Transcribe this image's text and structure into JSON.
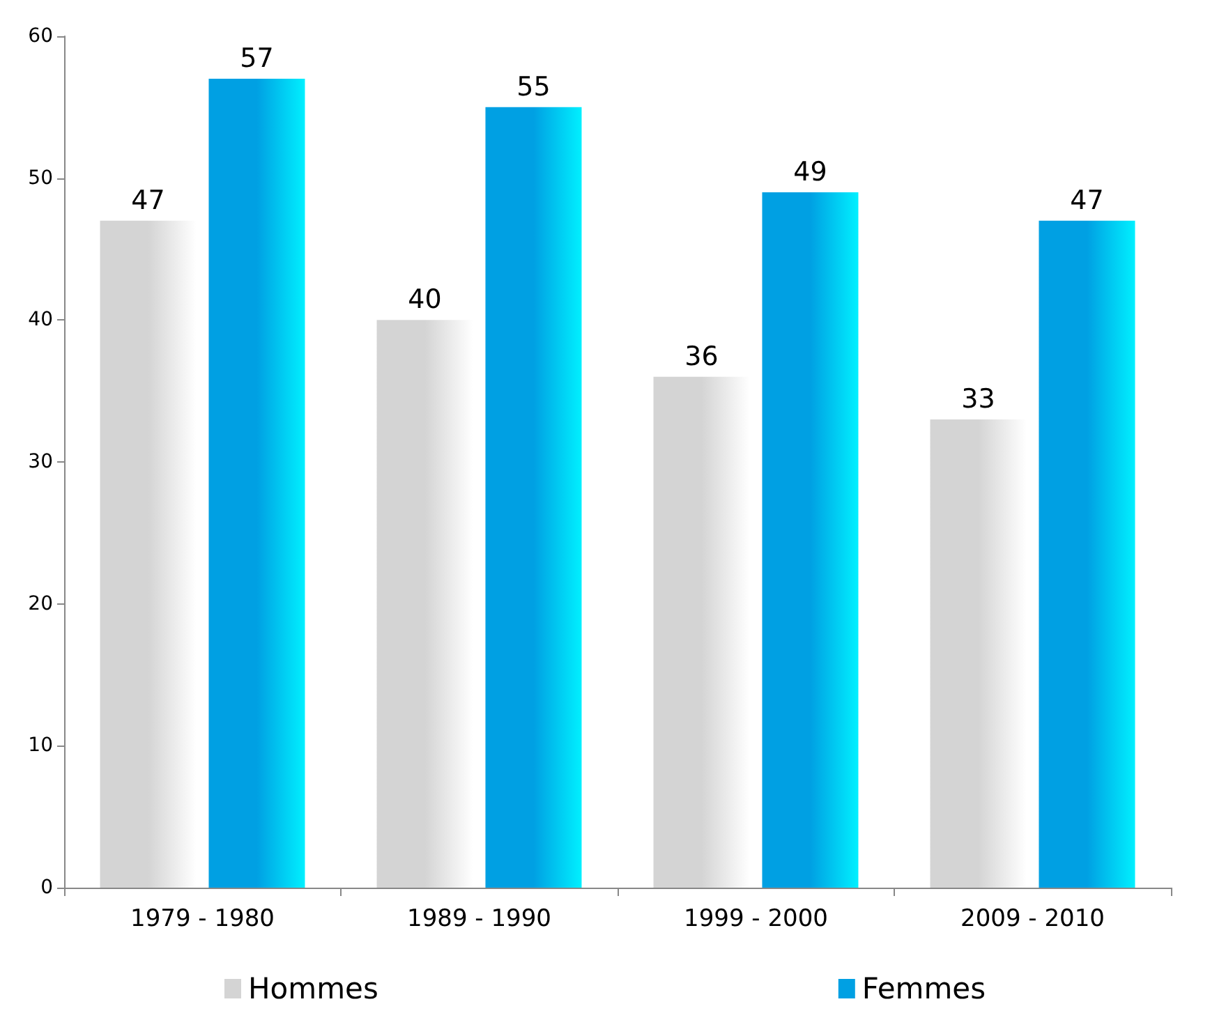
{
  "chart_data": {
    "type": "bar",
    "categories": [
      "1979 - 1980",
      "1989 - 1990",
      "1999 - 2000",
      "2009 - 2010"
    ],
    "series": [
      {
        "name": "Hommes",
        "color": "#d4d4d4",
        "values": [
          47,
          40,
          36,
          33
        ]
      },
      {
        "name": "Femmes",
        "color": "#00a0e3",
        "values": [
          57,
          55,
          49,
          47
        ]
      }
    ],
    "ylim": [
      0,
      60
    ],
    "yticks": [
      0,
      10,
      20,
      30,
      40,
      50,
      60
    ],
    "grid": false,
    "legend": "bottom",
    "data_labels": true
  }
}
